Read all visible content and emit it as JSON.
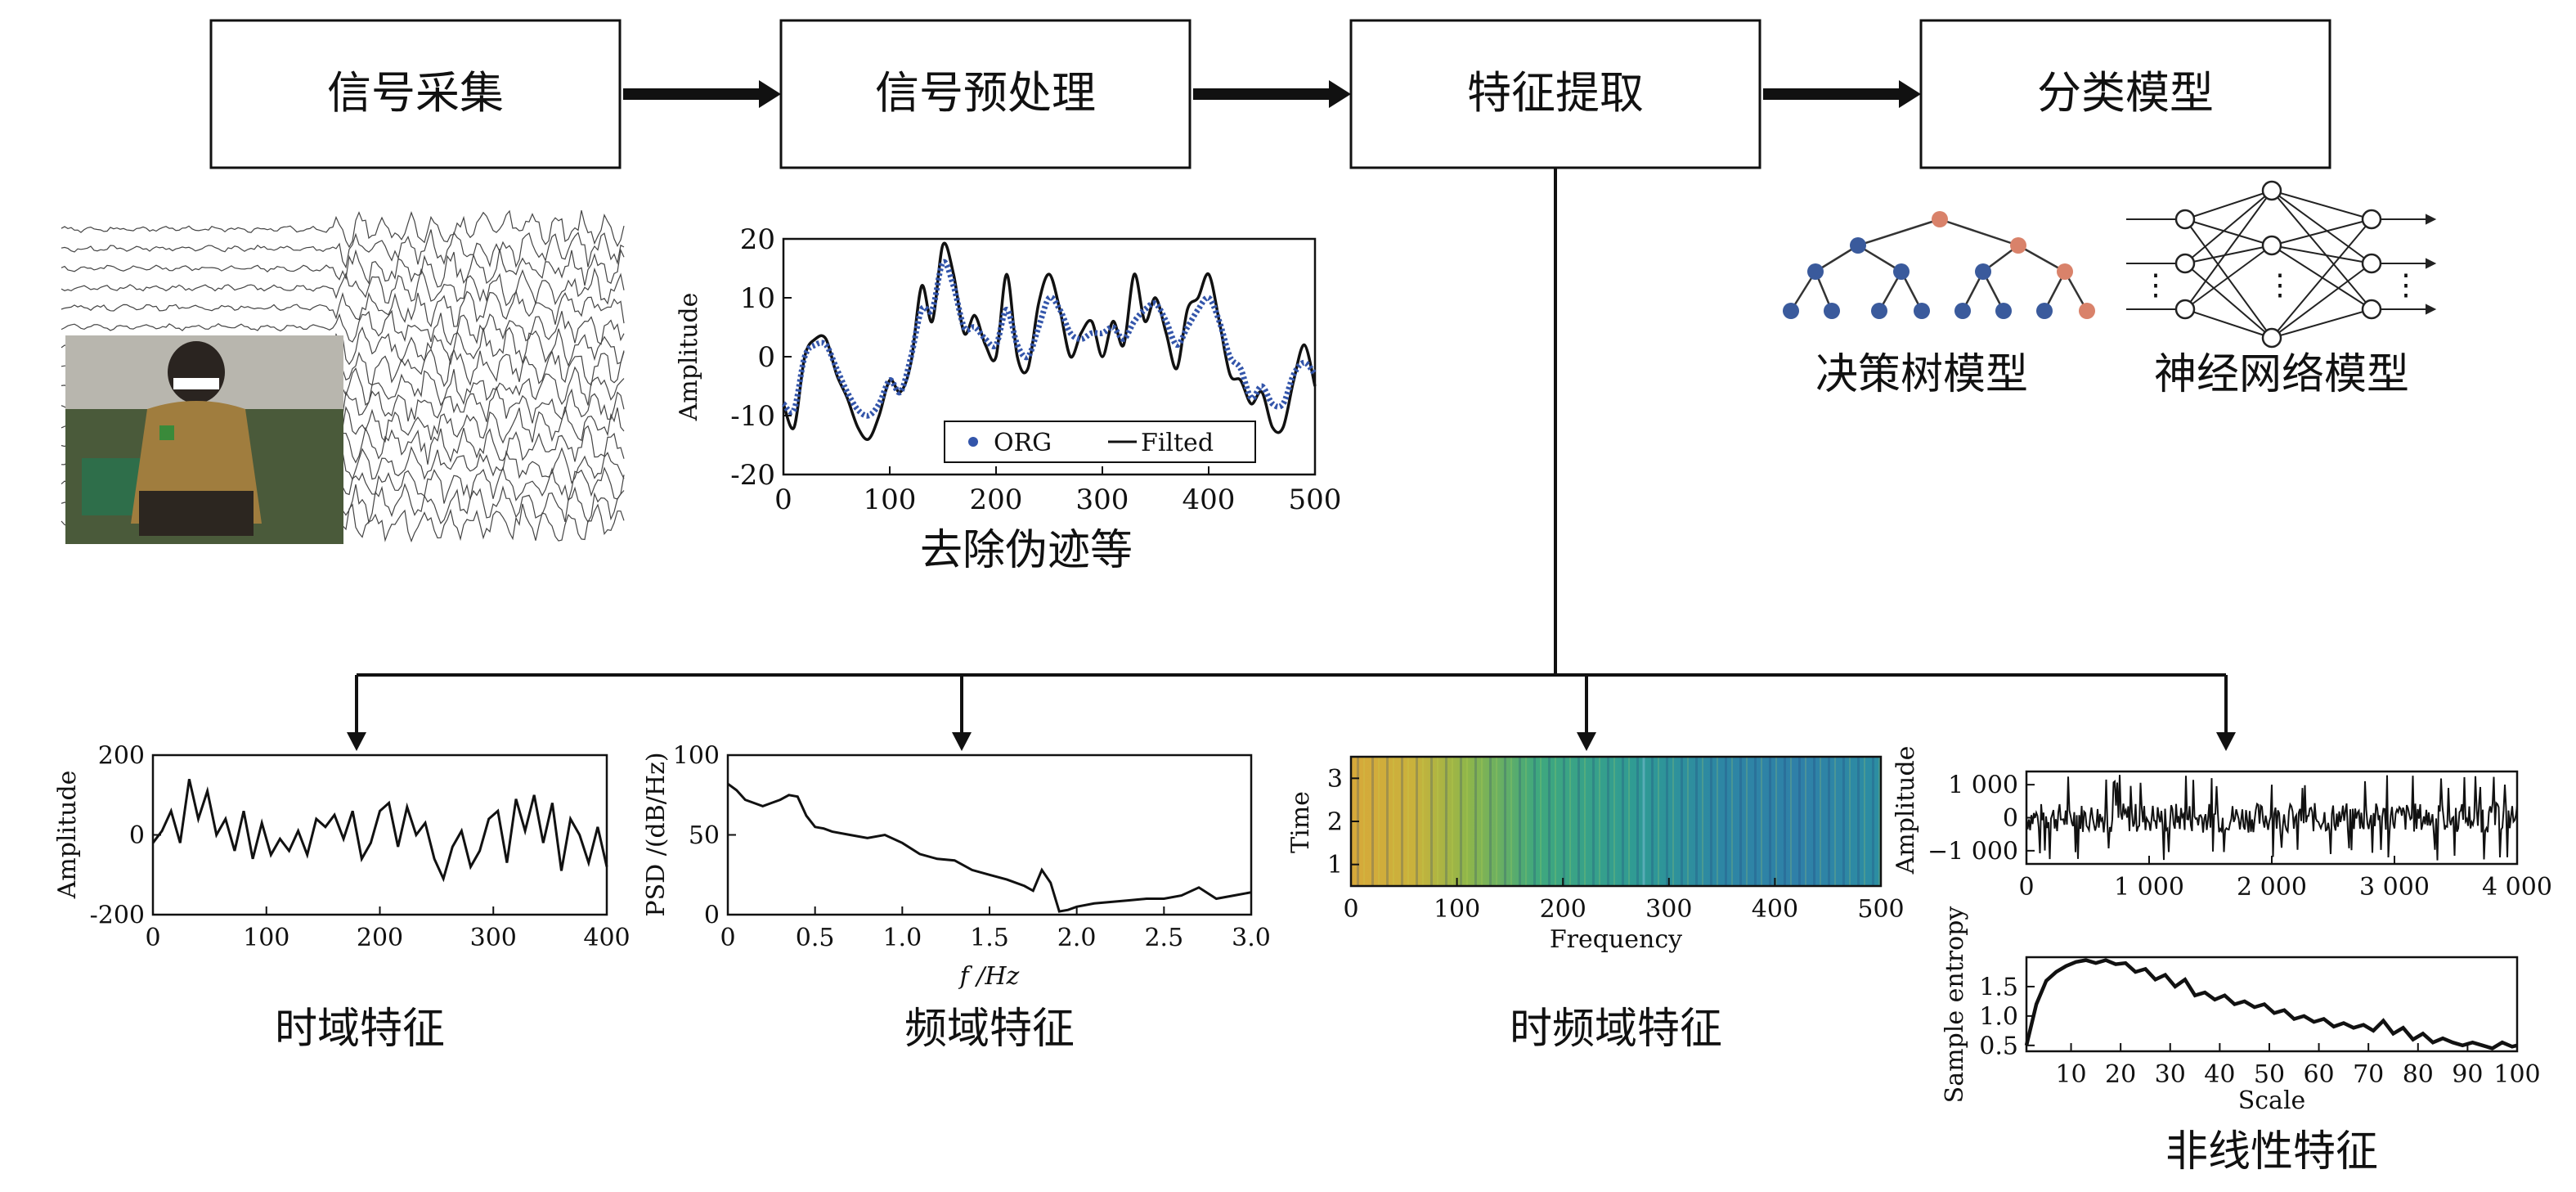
{
  "pipeline": {
    "steps": [
      {
        "label": "信号采集"
      },
      {
        "label": "信号预处理"
      },
      {
        "label": "特征提取"
      },
      {
        "label": "分类模型"
      }
    ]
  },
  "preprocess": {
    "caption": "去除伪迹等",
    "legend": {
      "org": "ORG",
      "filtered": "Filted"
    },
    "colors": {
      "org": "#3355aa",
      "filtered": "#111111"
    },
    "chart_data": {
      "type": "line",
      "xlabel": "",
      "ylabel": "Amplitude",
      "xlim": [
        0,
        500
      ],
      "ylim": [
        -20,
        20
      ],
      "xticks": [
        0,
        100,
        200,
        300,
        400,
        500
      ],
      "yticks": [
        20,
        10,
        0,
        -10,
        -20
      ],
      "x": [
        0,
        10,
        20,
        30,
        40,
        50,
        60,
        70,
        80,
        90,
        100,
        110,
        120,
        130,
        140,
        150,
        160,
        170,
        180,
        190,
        200,
        210,
        220,
        230,
        240,
        250,
        260,
        270,
        280,
        290,
        300,
        310,
        320,
        330,
        340,
        350,
        360,
        370,
        380,
        390,
        400,
        410,
        420,
        430,
        440,
        450,
        460,
        470,
        480,
        490,
        500
      ],
      "series": [
        {
          "name": "ORG",
          "values": [
            -8,
            -9,
            0,
            2,
            2,
            -2,
            -6,
            -9,
            -10,
            -8,
            -4,
            -6,
            0,
            8,
            8,
            16,
            12,
            5,
            5,
            3,
            2,
            8,
            2,
            0,
            5,
            10,
            8,
            4,
            3,
            4,
            4,
            5,
            3,
            6,
            8,
            9,
            6,
            2,
            5,
            8,
            10,
            6,
            0,
            -2,
            -7,
            -5,
            -8,
            -8,
            -3,
            -1,
            -3
          ]
        },
        {
          "name": "Filted",
          "values": [
            -8,
            -12,
            0,
            3,
            3,
            -3,
            -7,
            -12,
            -14,
            -10,
            -4,
            -6,
            -1,
            12,
            6,
            19,
            14,
            4,
            7,
            2,
            0,
            14,
            0,
            -2,
            9,
            14,
            8,
            0,
            4,
            6,
            0,
            6,
            2,
            14,
            6,
            10,
            4,
            -2,
            8,
            10,
            14,
            6,
            -3,
            -4,
            -8,
            -6,
            -12,
            -12,
            -4,
            2,
            -5
          ]
        }
      ]
    }
  },
  "classify": {
    "tree_label": "决策树模型",
    "nn_label": "神经网络模型",
    "colors": {
      "node_blue": "#3a5a9c",
      "node_orange": "#d9826a"
    },
    "ellipsis": "⋮"
  },
  "features": {
    "time": {
      "caption": "时域特征",
      "chart_data": {
        "type": "line",
        "xlabel": "",
        "ylabel": "Amplitude",
        "xlim": [
          0,
          400
        ],
        "ylim": [
          -200,
          200
        ],
        "xticks": [
          0,
          100,
          200,
          300,
          400
        ],
        "yticks": [
          200,
          0,
          -200
        ],
        "x": [
          0,
          8,
          16,
          24,
          32,
          40,
          48,
          56,
          64,
          72,
          80,
          88,
          96,
          104,
          112,
          120,
          128,
          136,
          144,
          152,
          160,
          168,
          176,
          184,
          192,
          200,
          208,
          216,
          224,
          232,
          240,
          248,
          256,
          264,
          272,
          280,
          288,
          296,
          304,
          312,
          320,
          328,
          336,
          344,
          352,
          360,
          368,
          376,
          384,
          392,
          400
        ],
        "values": [
          -20,
          10,
          60,
          -20,
          140,
          40,
          110,
          0,
          40,
          -40,
          60,
          -60,
          30,
          -50,
          -10,
          -40,
          10,
          -50,
          40,
          20,
          50,
          -10,
          60,
          -60,
          -20,
          60,
          80,
          -30,
          70,
          0,
          30,
          -60,
          -110,
          -30,
          10,
          -80,
          -40,
          40,
          60,
          -70,
          90,
          10,
          100,
          -20,
          80,
          -90,
          40,
          0,
          -70,
          20,
          -80
        ]
      }
    },
    "freq": {
      "caption": "频域特征",
      "chart_data": {
        "type": "line",
        "xlabel": "f /Hz",
        "ylabel": "PSD /(dB/Hz)",
        "xlim": [
          0,
          3.0
        ],
        "ylim": [
          0,
          100
        ],
        "xticks": [
          "0",
          "0.5",
          "1.0",
          "1.5",
          "2.0",
          "2.5",
          "3.0"
        ],
        "yticks": [
          100,
          50,
          0
        ],
        "x": [
          0,
          0.05,
          0.1,
          0.15,
          0.2,
          0.25,
          0.3,
          0.35,
          0.4,
          0.45,
          0.5,
          0.55,
          0.6,
          0.7,
          0.8,
          0.9,
          1.0,
          1.1,
          1.2,
          1.3,
          1.4,
          1.5,
          1.6,
          1.7,
          1.75,
          1.8,
          1.85,
          1.9,
          1.95,
          2.0,
          2.1,
          2.2,
          2.3,
          2.4,
          2.5,
          2.6,
          2.7,
          2.8,
          2.9,
          3.0
        ],
        "values": [
          82,
          78,
          72,
          70,
          68,
          70,
          72,
          75,
          74,
          62,
          55,
          54,
          52,
          50,
          48,
          50,
          45,
          38,
          35,
          34,
          28,
          25,
          22,
          18,
          15,
          28,
          20,
          2,
          3,
          5,
          7,
          8,
          9,
          10,
          10,
          12,
          17,
          10,
          12,
          14
        ]
      }
    },
    "timefreq": {
      "caption": "时频域特征",
      "chart_data": {
        "type": "heatmap",
        "xlabel": "Frequency",
        "ylabel": "Time",
        "xlim": [
          0,
          500
        ],
        "ylim": [
          0.5,
          3.5
        ],
        "xticks": [
          0,
          100,
          200,
          300,
          400,
          500
        ],
        "yticks": [
          3,
          2,
          1
        ],
        "colors": [
          "#d7b33a",
          "#8fb64a",
          "#35a585",
          "#2a8ca0",
          "#3278a8"
        ]
      }
    },
    "nonlinear": {
      "caption": "非线性特征",
      "amp_chart": {
        "chart_data": {
          "type": "line",
          "xlabel": "",
          "ylabel": "Amplitude",
          "xlim": [
            0,
            4000
          ],
          "ylim": [
            -1400,
            1400
          ],
          "xticks": [
            "0",
            "1 000",
            "2 000",
            "3 000",
            "4 000"
          ],
          "yticks": [
            "1 000",
            "0",
            "−1 000"
          ]
        }
      },
      "entropy_chart": {
        "chart_data": {
          "type": "line",
          "xlabel": "Scale",
          "ylabel": "Sample entropy",
          "xlim": [
            1,
            100
          ],
          "ylim": [
            0.4,
            2.0
          ],
          "xticks": [
            10,
            20,
            30,
            40,
            50,
            60,
            70,
            80,
            90,
            100
          ],
          "yticks": [
            "1.5",
            "1.0",
            "0.5"
          ],
          "x": [
            1,
            3,
            5,
            7,
            9,
            11,
            13,
            15,
            17,
            19,
            21,
            23,
            25,
            27,
            29,
            31,
            33,
            35,
            37,
            39,
            41,
            43,
            45,
            47,
            49,
            51,
            53,
            55,
            57,
            59,
            61,
            63,
            65,
            67,
            69,
            71,
            73,
            75,
            77,
            79,
            81,
            83,
            85,
            87,
            89,
            91,
            93,
            95,
            97,
            99,
            100
          ],
          "values": [
            0.5,
            1.2,
            1.6,
            1.75,
            1.85,
            1.92,
            1.95,
            1.9,
            1.95,
            1.88,
            1.9,
            1.75,
            1.8,
            1.62,
            1.7,
            1.5,
            1.62,
            1.35,
            1.4,
            1.28,
            1.35,
            1.2,
            1.25,
            1.15,
            1.2,
            1.05,
            1.1,
            0.95,
            1.0,
            0.9,
            0.95,
            0.82,
            0.88,
            0.8,
            0.85,
            0.75,
            0.92,
            0.7,
            0.8,
            0.6,
            0.7,
            0.55,
            0.62,
            0.55,
            0.5,
            0.55,
            0.5,
            0.45,
            0.55,
            0.48,
            0.5
          ]
        }
      }
    }
  }
}
